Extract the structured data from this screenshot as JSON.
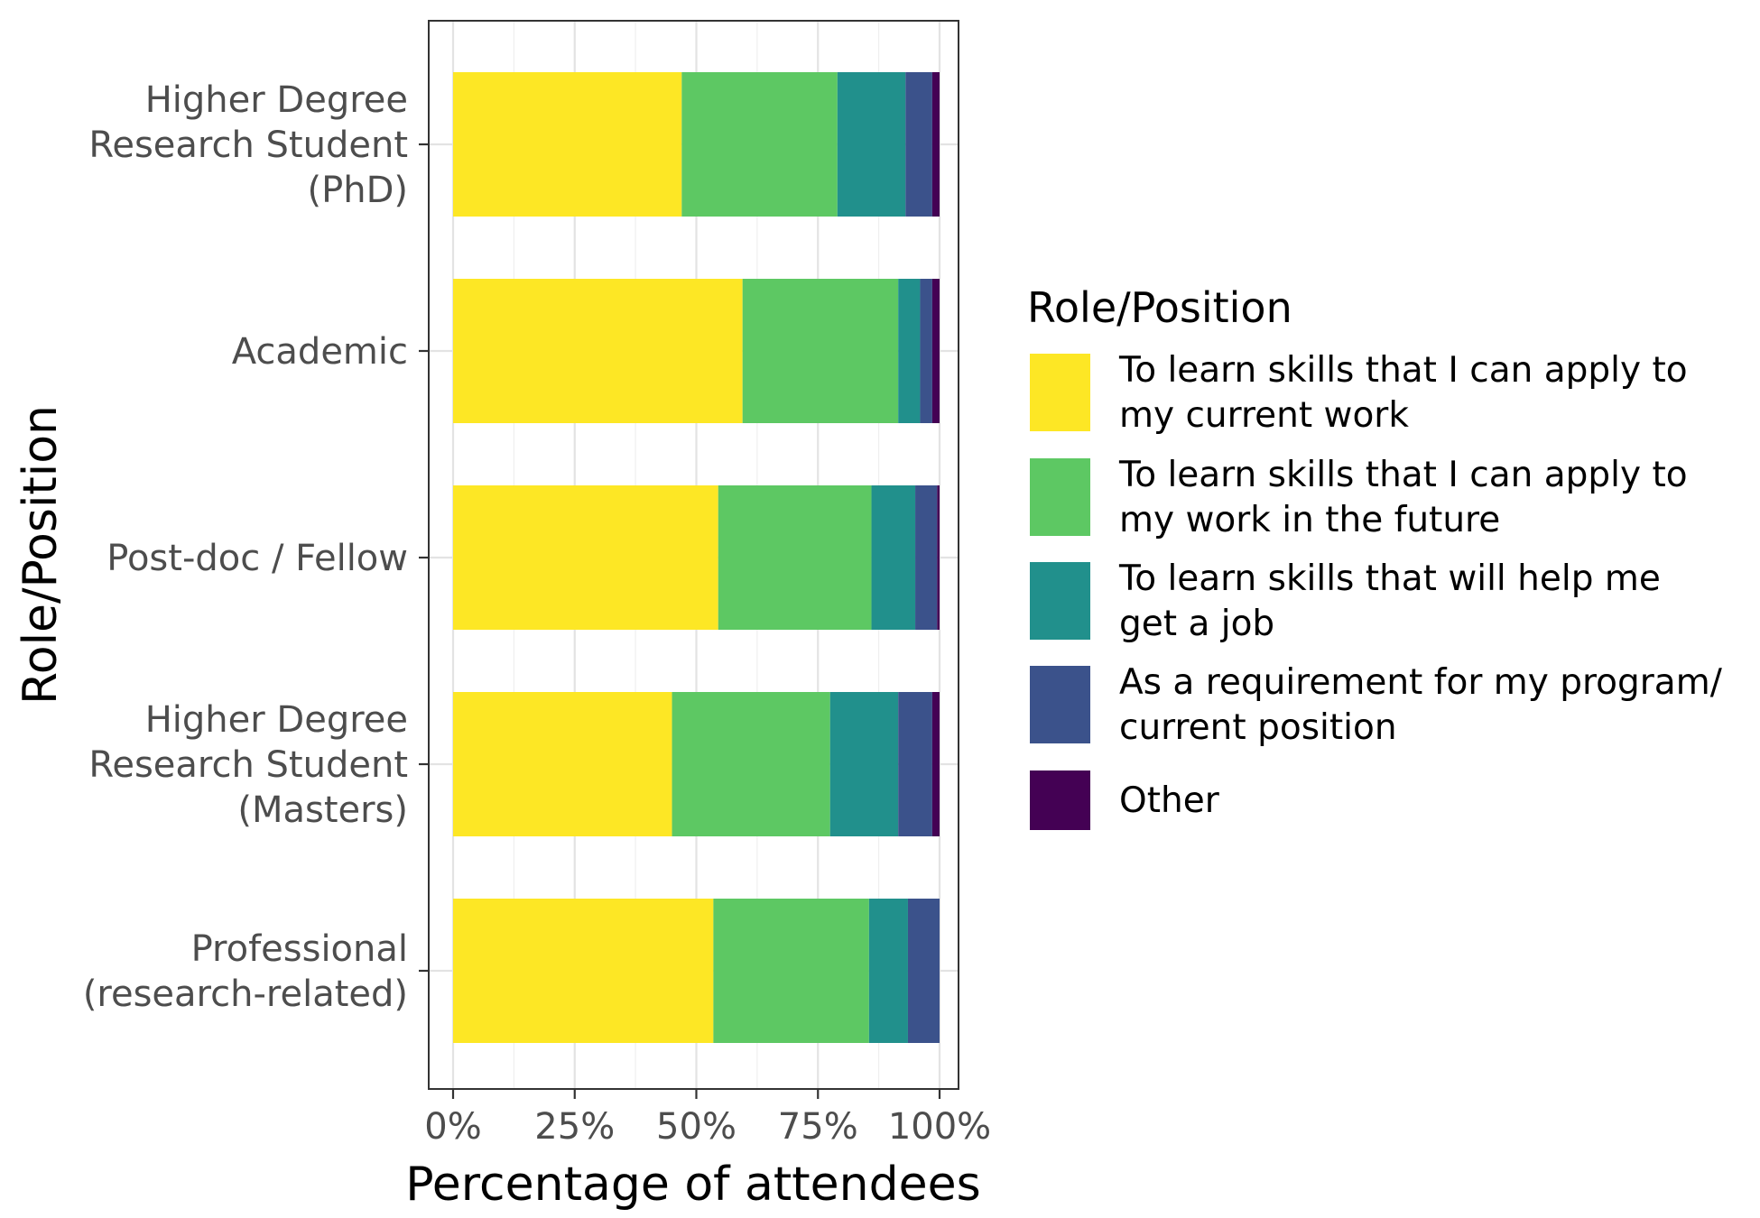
{
  "chart_data": {
    "type": "bar",
    "orientation": "horizontal",
    "stacked": true,
    "normalized": true,
    "xlabel": "Percentage of attendees",
    "ylabel": "Role/Position",
    "xlim": [
      0,
      100
    ],
    "x_ticks": [
      "0%",
      "25%",
      "50%",
      "75%",
      "100%"
    ],
    "grid": true,
    "legend": {
      "title": "Role/Position",
      "placement": "right"
    },
    "categories": [
      "Higher Degree Research Student (PhD)",
      "Academic",
      "Post-doc / Fellow",
      "Higher Degree Research Student (Masters)",
      "Professional (research-related)"
    ],
    "category_lines": [
      [
        "Higher Degree",
        "Research Student",
        "(PhD)"
      ],
      [
        "Academic"
      ],
      [
        "Post-doc / Fellow"
      ],
      [
        "Higher Degree",
        "Research Student",
        "(Masters)"
      ],
      [
        "Professional",
        "(research-related)"
      ]
    ],
    "series": [
      {
        "name": "To learn skills that I can apply to my current work",
        "legend_lines": [
          "To learn skills that I can apply to",
          "my current work"
        ],
        "color": "#FDE725",
        "values": [
          47,
          59.5,
          54.5,
          45,
          53.5
        ]
      },
      {
        "name": "To learn skills that I can apply to my work in the future",
        "legend_lines": [
          "To learn skills that I can apply to",
          "my work in the future"
        ],
        "color": "#5DC863",
        "values": [
          32,
          32,
          31.5,
          32.5,
          32
        ]
      },
      {
        "name": "To learn skills that will help me get a job",
        "legend_lines": [
          "To learn skills that will help me",
          "get a job"
        ],
        "color": "#21908C",
        "values": [
          14,
          4.5,
          9,
          14,
          8
        ]
      },
      {
        "name": "As a requirement for my program/ current position",
        "legend_lines": [
          "As a requirement for my program/",
          "current position"
        ],
        "color": "#3B528B",
        "values": [
          5.5,
          2.5,
          4.5,
          7,
          6.5
        ]
      },
      {
        "name": "Other",
        "legend_lines": [
          "Other"
        ],
        "color": "#440154",
        "values": [
          1.5,
          1.5,
          0.5,
          1.5,
          0
        ]
      }
    ]
  }
}
